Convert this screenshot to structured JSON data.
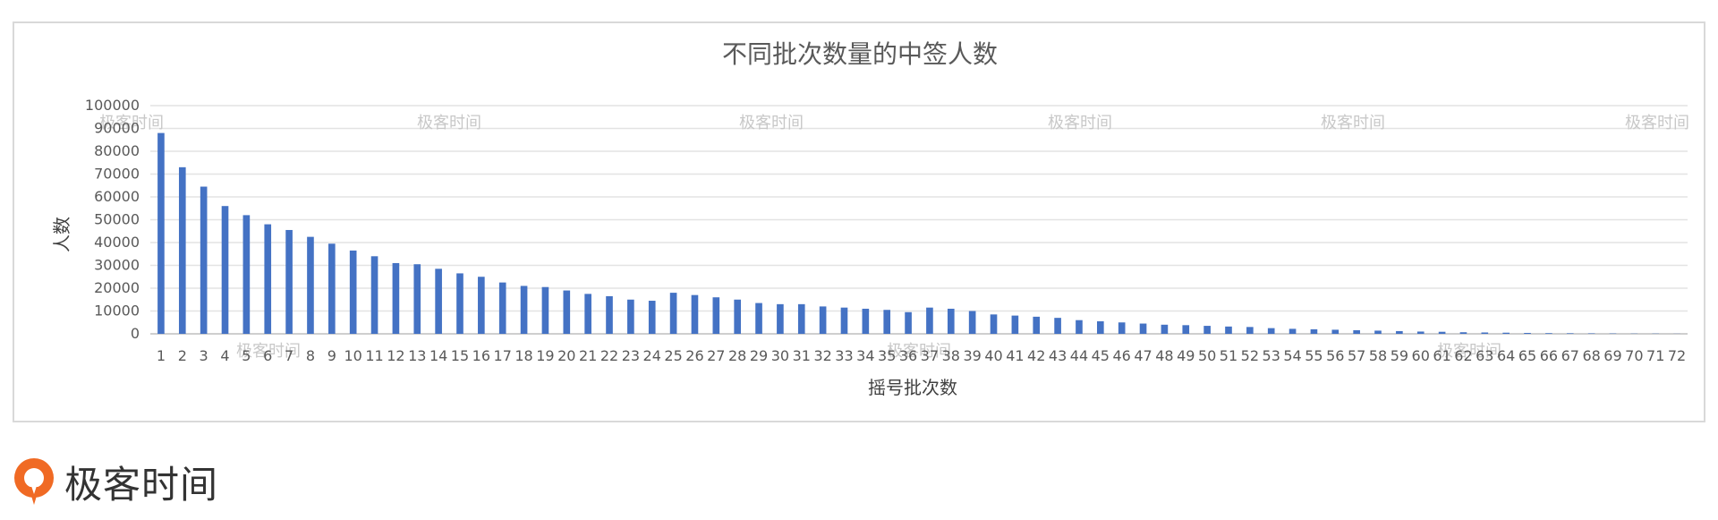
{
  "chart_data": {
    "type": "bar",
    "title": "不同批次数量的中签人数",
    "xlabel": "摇号批次数",
    "ylabel": "人数",
    "ylim": [
      0,
      100000
    ],
    "yticks": [
      0,
      10000,
      20000,
      30000,
      40000,
      50000,
      60000,
      70000,
      80000,
      90000,
      100000
    ],
    "grid": true,
    "bar_color": "#4472C4",
    "categories": [
      "1",
      "2",
      "3",
      "4",
      "5",
      "6",
      "7",
      "8",
      "9",
      "10",
      "11",
      "12",
      "13",
      "14",
      "15",
      "16",
      "17",
      "18",
      "19",
      "20",
      "21",
      "22",
      "23",
      "24",
      "25",
      "26",
      "27",
      "28",
      "29",
      "30",
      "31",
      "32",
      "33",
      "34",
      "35",
      "36",
      "37",
      "38",
      "39",
      "40",
      "41",
      "42",
      "43",
      "44",
      "45",
      "46",
      "47",
      "48",
      "49",
      "50",
      "51",
      "52",
      "53",
      "54",
      "55",
      "56",
      "57",
      "58",
      "59",
      "60",
      "61",
      "62",
      "63",
      "64",
      "65",
      "66",
      "67",
      "68",
      "69",
      "70",
      "71",
      "72"
    ],
    "values": [
      88000,
      73000,
      64500,
      56000,
      52000,
      48000,
      45500,
      42500,
      39500,
      36500,
      34000,
      31000,
      30500,
      28500,
      26500,
      25000,
      22500,
      21000,
      20500,
      19000,
      17500,
      16500,
      15000,
      14500,
      18000,
      17000,
      16000,
      15000,
      13500,
      13000,
      13000,
      12000,
      11500,
      11000,
      10500,
      9500,
      11500,
      11000,
      10000,
      8500,
      8000,
      7500,
      7000,
      6000,
      5500,
      5000,
      4500,
      4000,
      3800,
      3500,
      3200,
      3000,
      2500,
      2200,
      2000,
      1800,
      1600,
      1400,
      1200,
      1000,
      900,
      700,
      600,
      500,
      400,
      300,
      250,
      200,
      150,
      100,
      100,
      50
    ]
  },
  "watermark": {
    "text": "极客时间"
  },
  "brand": {
    "logo_text": "极客时间",
    "color": "#F06A24"
  }
}
